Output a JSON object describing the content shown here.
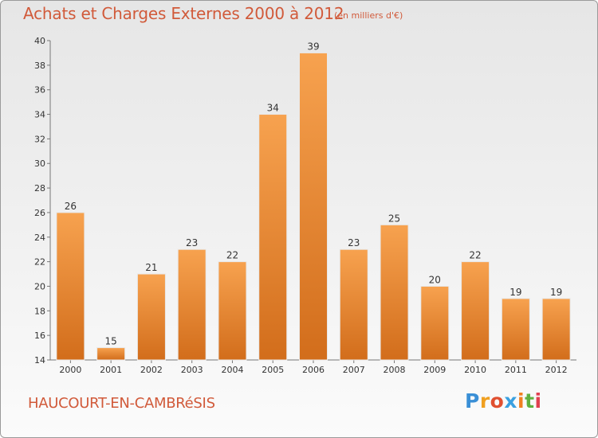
{
  "header": {
    "title": "Achats et Charges Externes 2000 à 2012",
    "subtitle": "(en milliers d'€)"
  },
  "footer": {
    "commune": "HAUCOURT-EN-CAMBRéSIS",
    "logo_letters": [
      "P",
      "r",
      "o",
      "x",
      "i",
      "t",
      "i"
    ],
    "logo_colors": [
      "#3a8fd6",
      "#f0a020",
      "#e05030",
      "#3aa0e0",
      "#f08020",
      "#60b040",
      "#e04050"
    ]
  },
  "colors": {
    "bar_light": "#f7a24f",
    "bar_dark": "#d26d1b",
    "accent_text": "#d15a3a"
  },
  "chart_data": {
    "type": "bar",
    "categories": [
      "2000",
      "2001",
      "2002",
      "2003",
      "2004",
      "2005",
      "2006",
      "2007",
      "2008",
      "2009",
      "2010",
      "2011",
      "2012"
    ],
    "values": [
      26,
      15,
      21,
      23,
      22,
      34,
      39,
      23,
      25,
      20,
      22,
      19,
      19
    ],
    "data_labels": [
      "26",
      "15",
      "21",
      "23",
      "22",
      "34",
      "39",
      "23",
      "25",
      "20",
      "22",
      "19",
      "19"
    ],
    "ylim": [
      14,
      40
    ],
    "yticks": [
      14,
      16,
      18,
      20,
      22,
      24,
      26,
      28,
      30,
      32,
      34,
      36,
      38,
      40
    ],
    "grid": false,
    "legend": "none"
  }
}
